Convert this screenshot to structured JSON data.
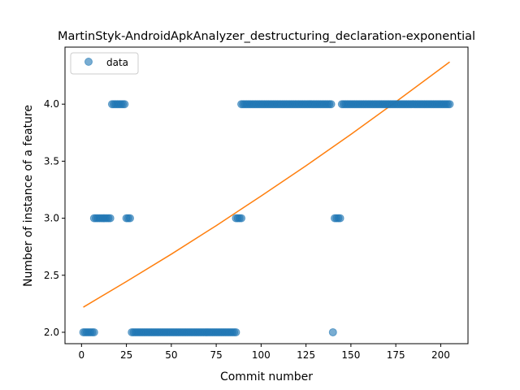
{
  "chart_data": {
    "type": "scatter",
    "title": "MartinStyk-AndroidApkAnalyzer_destructuring_declaration-exponential",
    "xlabel": "Commit number",
    "ylabel": "Number of instance of a feature",
    "xlim": [
      -9.2,
      215.2
    ],
    "ylim": [
      1.9,
      4.5
    ],
    "xticks": [
      0,
      25,
      50,
      75,
      100,
      125,
      150,
      175,
      200
    ],
    "yticks": [
      2.0,
      2.5,
      3.0,
      3.5,
      4.0
    ],
    "ytick_labels": [
      "2.0",
      "2.5",
      "3.0",
      "3.5",
      "4.0"
    ],
    "legend": {
      "position": "upper-left",
      "entries": [
        "data"
      ]
    },
    "colors": {
      "data": "#1f77b4",
      "fit": "#ff7f0e"
    },
    "grid": false,
    "series": [
      {
        "name": "data",
        "kind": "scatter",
        "runs": [
          {
            "x_from": 1,
            "x_to": 7,
            "y": 2
          },
          {
            "x_from": 7,
            "x_to": 16,
            "y": 3
          },
          {
            "x_from": 17,
            "x_to": 24,
            "y": 4
          },
          {
            "x_from": 25,
            "x_to": 27,
            "y": 3
          },
          {
            "x_from": 28,
            "x_to": 86,
            "y": 2
          },
          {
            "x_from": 86,
            "x_to": 89,
            "y": 3
          },
          {
            "x_from": 89,
            "x_to": 139,
            "y": 4
          },
          {
            "x_from": 140,
            "x_to": 140,
            "y": 2
          },
          {
            "x_from": 141,
            "x_to": 144,
            "y": 3
          },
          {
            "x_from": 145,
            "x_to": 205,
            "y": 4
          }
        ]
      },
      {
        "kind": "line",
        "x": [
          1,
          25,
          50,
          75,
          100,
          125,
          150,
          175,
          205
        ],
        "y": [
          2.22,
          2.445,
          2.685,
          2.935,
          3.195,
          3.46,
          3.735,
          4.02,
          4.37
        ]
      }
    ]
  }
}
